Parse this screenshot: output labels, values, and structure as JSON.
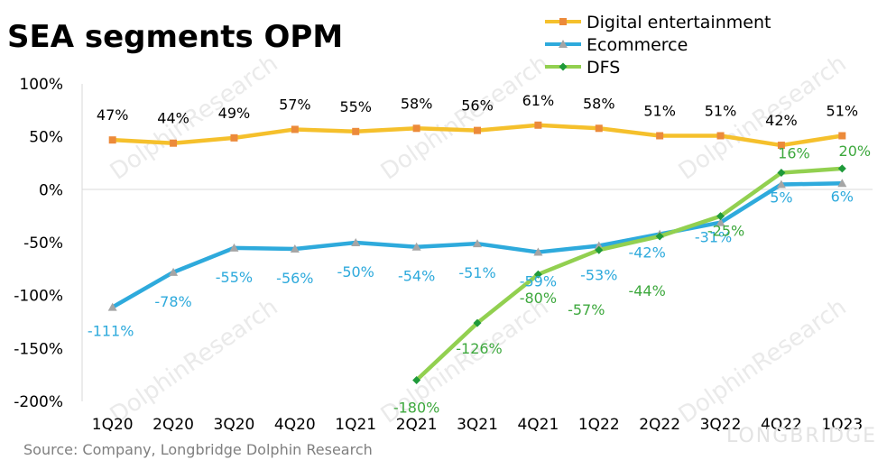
{
  "title": "SEA segments OPM",
  "source": "Source: Company, Longbridge Dolphin Research",
  "watermark": {
    "text": "DolphinResearch",
    "brand": "LONGBRIDGE"
  },
  "colors": {
    "digital_entertainment": "#f5c02c",
    "ecommerce": "#2eaadc",
    "dfs": "#92d050",
    "ecommerce_label": "#2eaadc",
    "dfs_label": "#3da83d",
    "de_marker": "#ec8a3a",
    "ec_marker": "#a5a5a5",
    "dfs_marker": "#1f9a3a"
  },
  "chart_data": {
    "type": "line",
    "title": "SEA segments OPM",
    "xlabel": "",
    "ylabel": "",
    "categories": [
      "1Q20",
      "2Q20",
      "3Q20",
      "4Q20",
      "1Q21",
      "2Q21",
      "3Q21",
      "4Q21",
      "1Q22",
      "2Q22",
      "3Q22",
      "4Q22",
      "1Q23"
    ],
    "ylim": [
      -200,
      100
    ],
    "yticks": [
      100,
      50,
      0,
      -50,
      -100,
      -150,
      -200
    ],
    "ytick_labels": [
      "100%",
      "50%",
      "0%",
      "-50%",
      "-100%",
      "-150%",
      "-200%"
    ],
    "legend_position": "top-right",
    "grid": false,
    "series": [
      {
        "key": "digital_entertainment",
        "name": "Digital entertainment",
        "values": [
          47,
          44,
          49,
          57,
          55,
          58,
          56,
          61,
          58,
          51,
          51,
          42,
          51
        ],
        "labels": [
          "47%",
          "44%",
          "49%",
          "57%",
          "55%",
          "58%",
          "56%",
          "61%",
          "58%",
          "51%",
          "51%",
          "42%",
          "51%"
        ]
      },
      {
        "key": "ecommerce",
        "name": "Ecommerce",
        "values": [
          -111,
          -78,
          -55,
          -56,
          -50,
          -54,
          -51,
          -59,
          -53,
          -42,
          -31,
          5,
          6
        ],
        "labels": [
          "-111%",
          "-78%",
          "-55%",
          "-56%",
          "-50%",
          "-54%",
          "-51%",
          "-59%",
          "-53%",
          "-42%",
          "-31%",
          "5%",
          "6%"
        ]
      },
      {
        "key": "dfs",
        "name": "DFS",
        "values": [
          null,
          null,
          null,
          null,
          null,
          -180,
          -126,
          -80,
          -57,
          -44,
          -25,
          16,
          20
        ],
        "labels": [
          null,
          null,
          null,
          null,
          null,
          "-180%",
          "-126%",
          "-80%",
          "-57%",
          "-44%",
          "-25%",
          "16%",
          "20%"
        ]
      }
    ]
  }
}
